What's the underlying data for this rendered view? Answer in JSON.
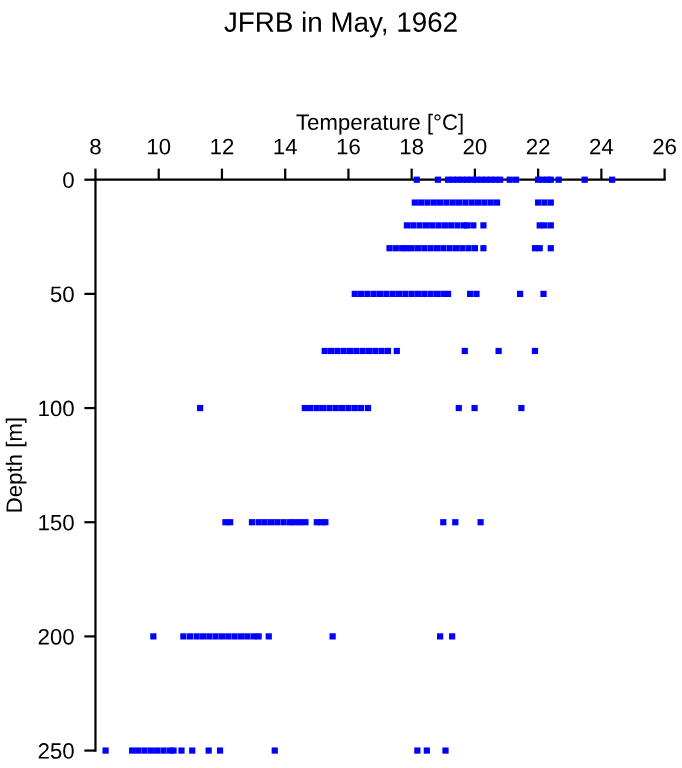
{
  "chart_data": {
    "type": "scatter",
    "title": "JFRB in May, 1962",
    "xlabel": "Temperature [°C]",
    "ylabel": "Depth [m]",
    "xlim": [
      8,
      26
    ],
    "xticks": [
      8,
      10,
      12,
      14,
      16,
      18,
      20,
      22,
      24,
      26
    ],
    "ylim": [
      250,
      0
    ],
    "yticks": [
      0,
      50,
      100,
      150,
      200,
      250
    ],
    "marker": "square",
    "grid": false,
    "legend": false,
    "series": [
      {
        "color": "#0000ff",
        "x": [
          18.16,
          18.83,
          19.15,
          19.3,
          19.45,
          19.6,
          19.75,
          19.9,
          20.05,
          20.2,
          20.35,
          20.5,
          20.65,
          20.8,
          21.1,
          21.3,
          22.0,
          22.15,
          22.3,
          22.4,
          22.65,
          23.47,
          24.34,
          18.1,
          18.3,
          18.5,
          18.7,
          18.9,
          19.1,
          19.3,
          19.5,
          19.7,
          19.9,
          20.1,
          20.3,
          20.5,
          20.7,
          22.0,
          22.2,
          22.4,
          17.85,
          18.05,
          18.25,
          18.45,
          18.65,
          18.85,
          19.05,
          19.25,
          19.45,
          19.65,
          19.75,
          19.95,
          20.27,
          22.05,
          22.2,
          22.4,
          17.3,
          17.5,
          17.7,
          17.85,
          18.0,
          18.2,
          18.4,
          18.6,
          18.8,
          19.0,
          19.2,
          19.4,
          19.6,
          19.8,
          20.0,
          20.27,
          21.9,
          22.05,
          22.4,
          16.2,
          16.4,
          16.6,
          16.8,
          17.0,
          17.2,
          17.4,
          17.6,
          17.8,
          18.0,
          18.2,
          18.4,
          18.6,
          18.8,
          19.0,
          19.15,
          19.85,
          20.05,
          21.43,
          22.17,
          15.25,
          15.45,
          15.65,
          15.85,
          16.05,
          16.25,
          16.45,
          16.65,
          16.85,
          17.05,
          17.25,
          17.53,
          19.68,
          20.75,
          21.9,
          11.31,
          14.62,
          14.8,
          15.0,
          15.2,
          15.4,
          15.6,
          15.8,
          16.0,
          16.2,
          16.4,
          16.62,
          19.49,
          19.99,
          21.47,
          12.11,
          12.26,
          12.95,
          13.16,
          13.35,
          13.55,
          13.75,
          13.95,
          14.15,
          14.3,
          14.47,
          14.64,
          15.0,
          15.15,
          15.27,
          19.0,
          19.38,
          20.18,
          9.83,
          10.78,
          10.99,
          11.2,
          11.4,
          11.6,
          11.8,
          12.0,
          12.2,
          12.4,
          12.6,
          12.8,
          13.0,
          13.16,
          13.48,
          15.5,
          18.9,
          19.28,
          8.32,
          9.16,
          9.35,
          9.55,
          9.75,
          9.95,
          10.15,
          10.35,
          10.47,
          10.72,
          11.06,
          11.58,
          11.94,
          13.67,
          18.18,
          18.48,
          19.07
        ],
        "values": [
          0,
          0,
          0,
          0,
          0,
          0,
          0,
          0,
          0,
          0,
          0,
          0,
          0,
          0,
          0,
          0,
          0,
          0,
          0,
          0,
          0,
          0,
          0,
          10,
          10,
          10,
          10,
          10,
          10,
          10,
          10,
          10,
          10,
          10,
          10,
          10,
          10,
          10,
          10,
          10,
          20,
          20,
          20,
          20,
          20,
          20,
          20,
          20,
          20,
          20,
          20,
          20,
          20,
          20,
          20,
          20,
          30,
          30,
          30,
          30,
          30,
          30,
          30,
          30,
          30,
          30,
          30,
          30,
          30,
          30,
          30,
          30,
          30,
          30,
          30,
          50,
          50,
          50,
          50,
          50,
          50,
          50,
          50,
          50,
          50,
          50,
          50,
          50,
          50,
          50,
          50,
          50,
          50,
          50,
          50,
          75,
          75,
          75,
          75,
          75,
          75,
          75,
          75,
          75,
          75,
          75,
          75,
          75,
          75,
          75,
          100,
          100,
          100,
          100,
          100,
          100,
          100,
          100,
          100,
          100,
          100,
          100,
          100,
          100,
          100,
          150,
          150,
          150,
          150,
          150,
          150,
          150,
          150,
          150,
          150,
          150,
          150,
          150,
          150,
          150,
          150,
          150,
          150,
          200,
          200,
          200,
          200,
          200,
          200,
          200,
          200,
          200,
          200,
          200,
          200,
          200,
          200,
          200,
          200,
          200,
          200,
          250,
          250,
          250,
          250,
          250,
          250,
          250,
          250,
          250,
          250,
          250,
          250,
          250,
          250,
          250,
          250,
          250
        ]
      }
    ]
  }
}
